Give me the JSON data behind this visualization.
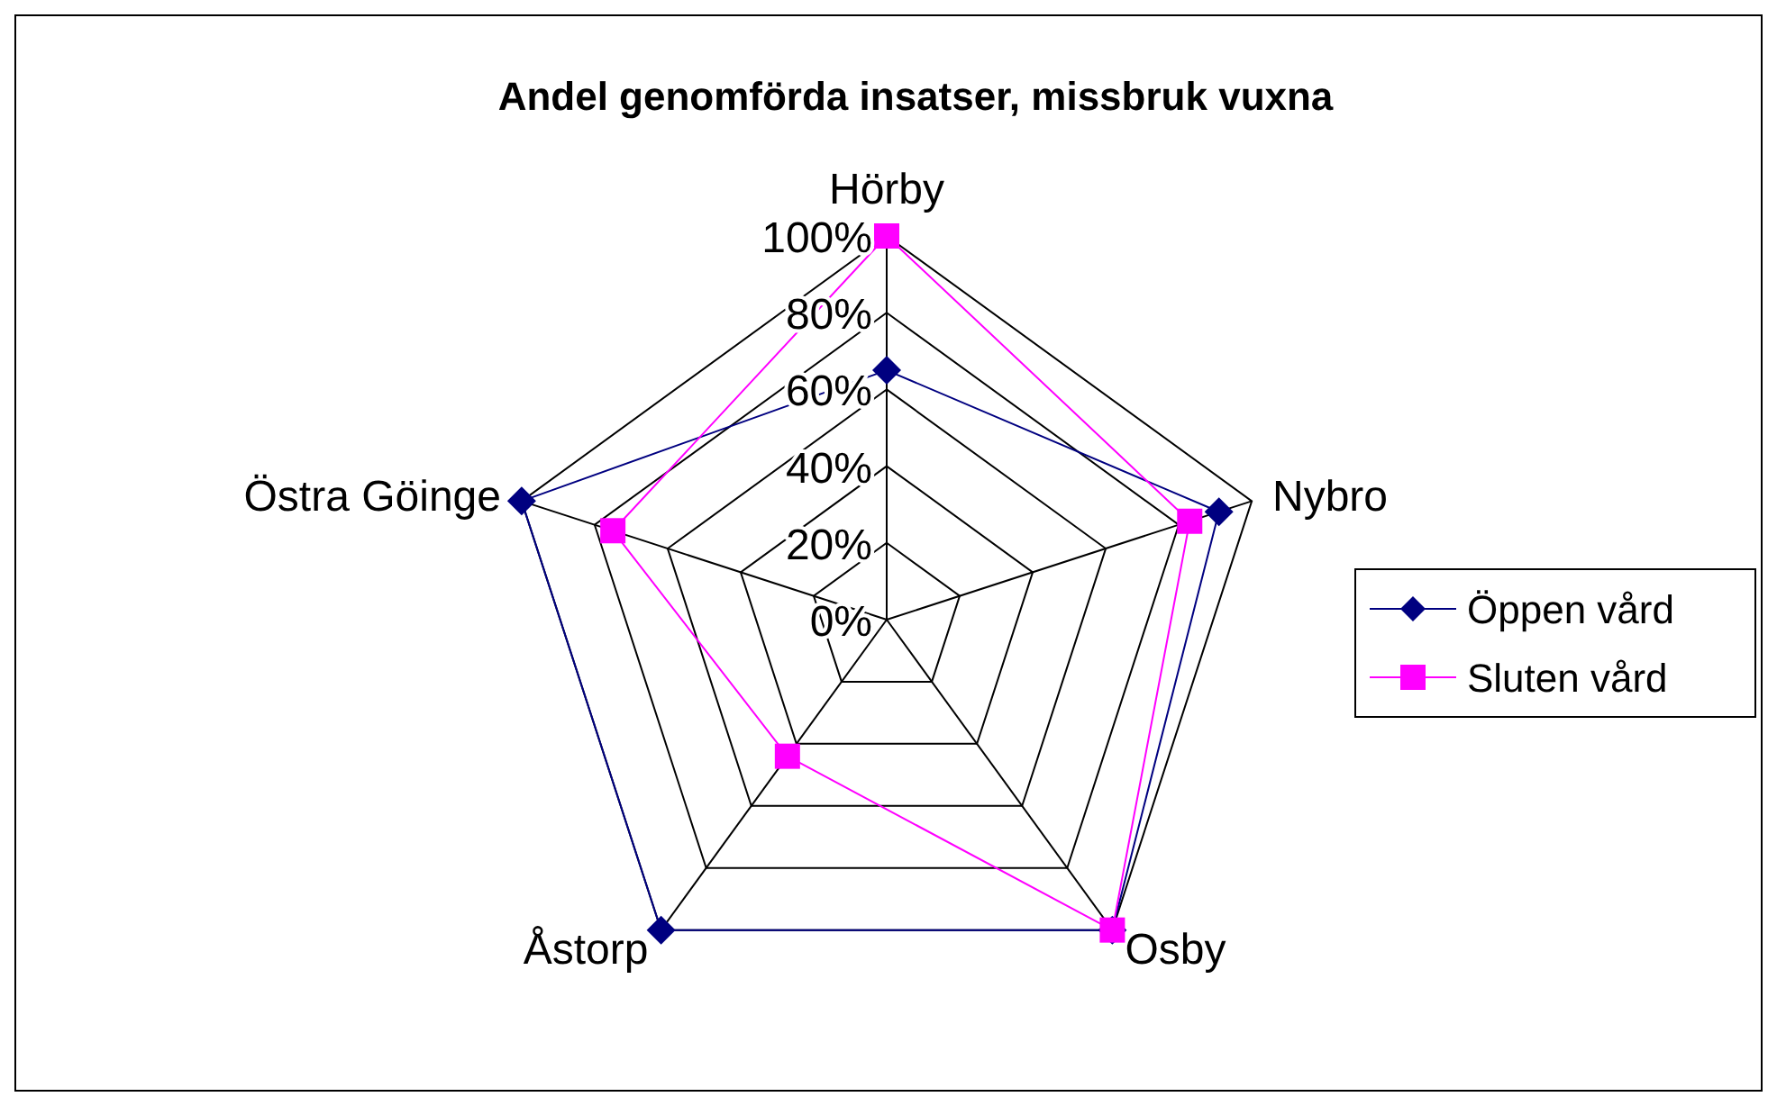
{
  "chart_data": {
    "type": "radar",
    "title": "Andel genomförda insatser, missbruk vuxna",
    "categories": [
      "Hörby",
      "Nybro",
      "Osby",
      "Åstorp",
      "Östra Göinge"
    ],
    "ylim": [
      0,
      100
    ],
    "yticks": [
      {
        "value": 0,
        "label": "0%"
      },
      {
        "value": 20,
        "label": "20%"
      },
      {
        "value": 40,
        "label": "40%"
      },
      {
        "value": 60,
        "label": "60%"
      },
      {
        "value": 80,
        "label": "80%"
      },
      {
        "value": 100,
        "label": "100%"
      }
    ],
    "legend": "right",
    "grid": true,
    "series": [
      {
        "name": "Öppen vård",
        "color": "#000080",
        "marker": "diamond",
        "values": [
          65,
          91,
          100,
          100,
          100
        ]
      },
      {
        "name": "Sluten vård",
        "color": "#ff00ff",
        "marker": "square",
        "values": [
          100,
          83,
          100,
          44,
          75
        ]
      }
    ]
  }
}
